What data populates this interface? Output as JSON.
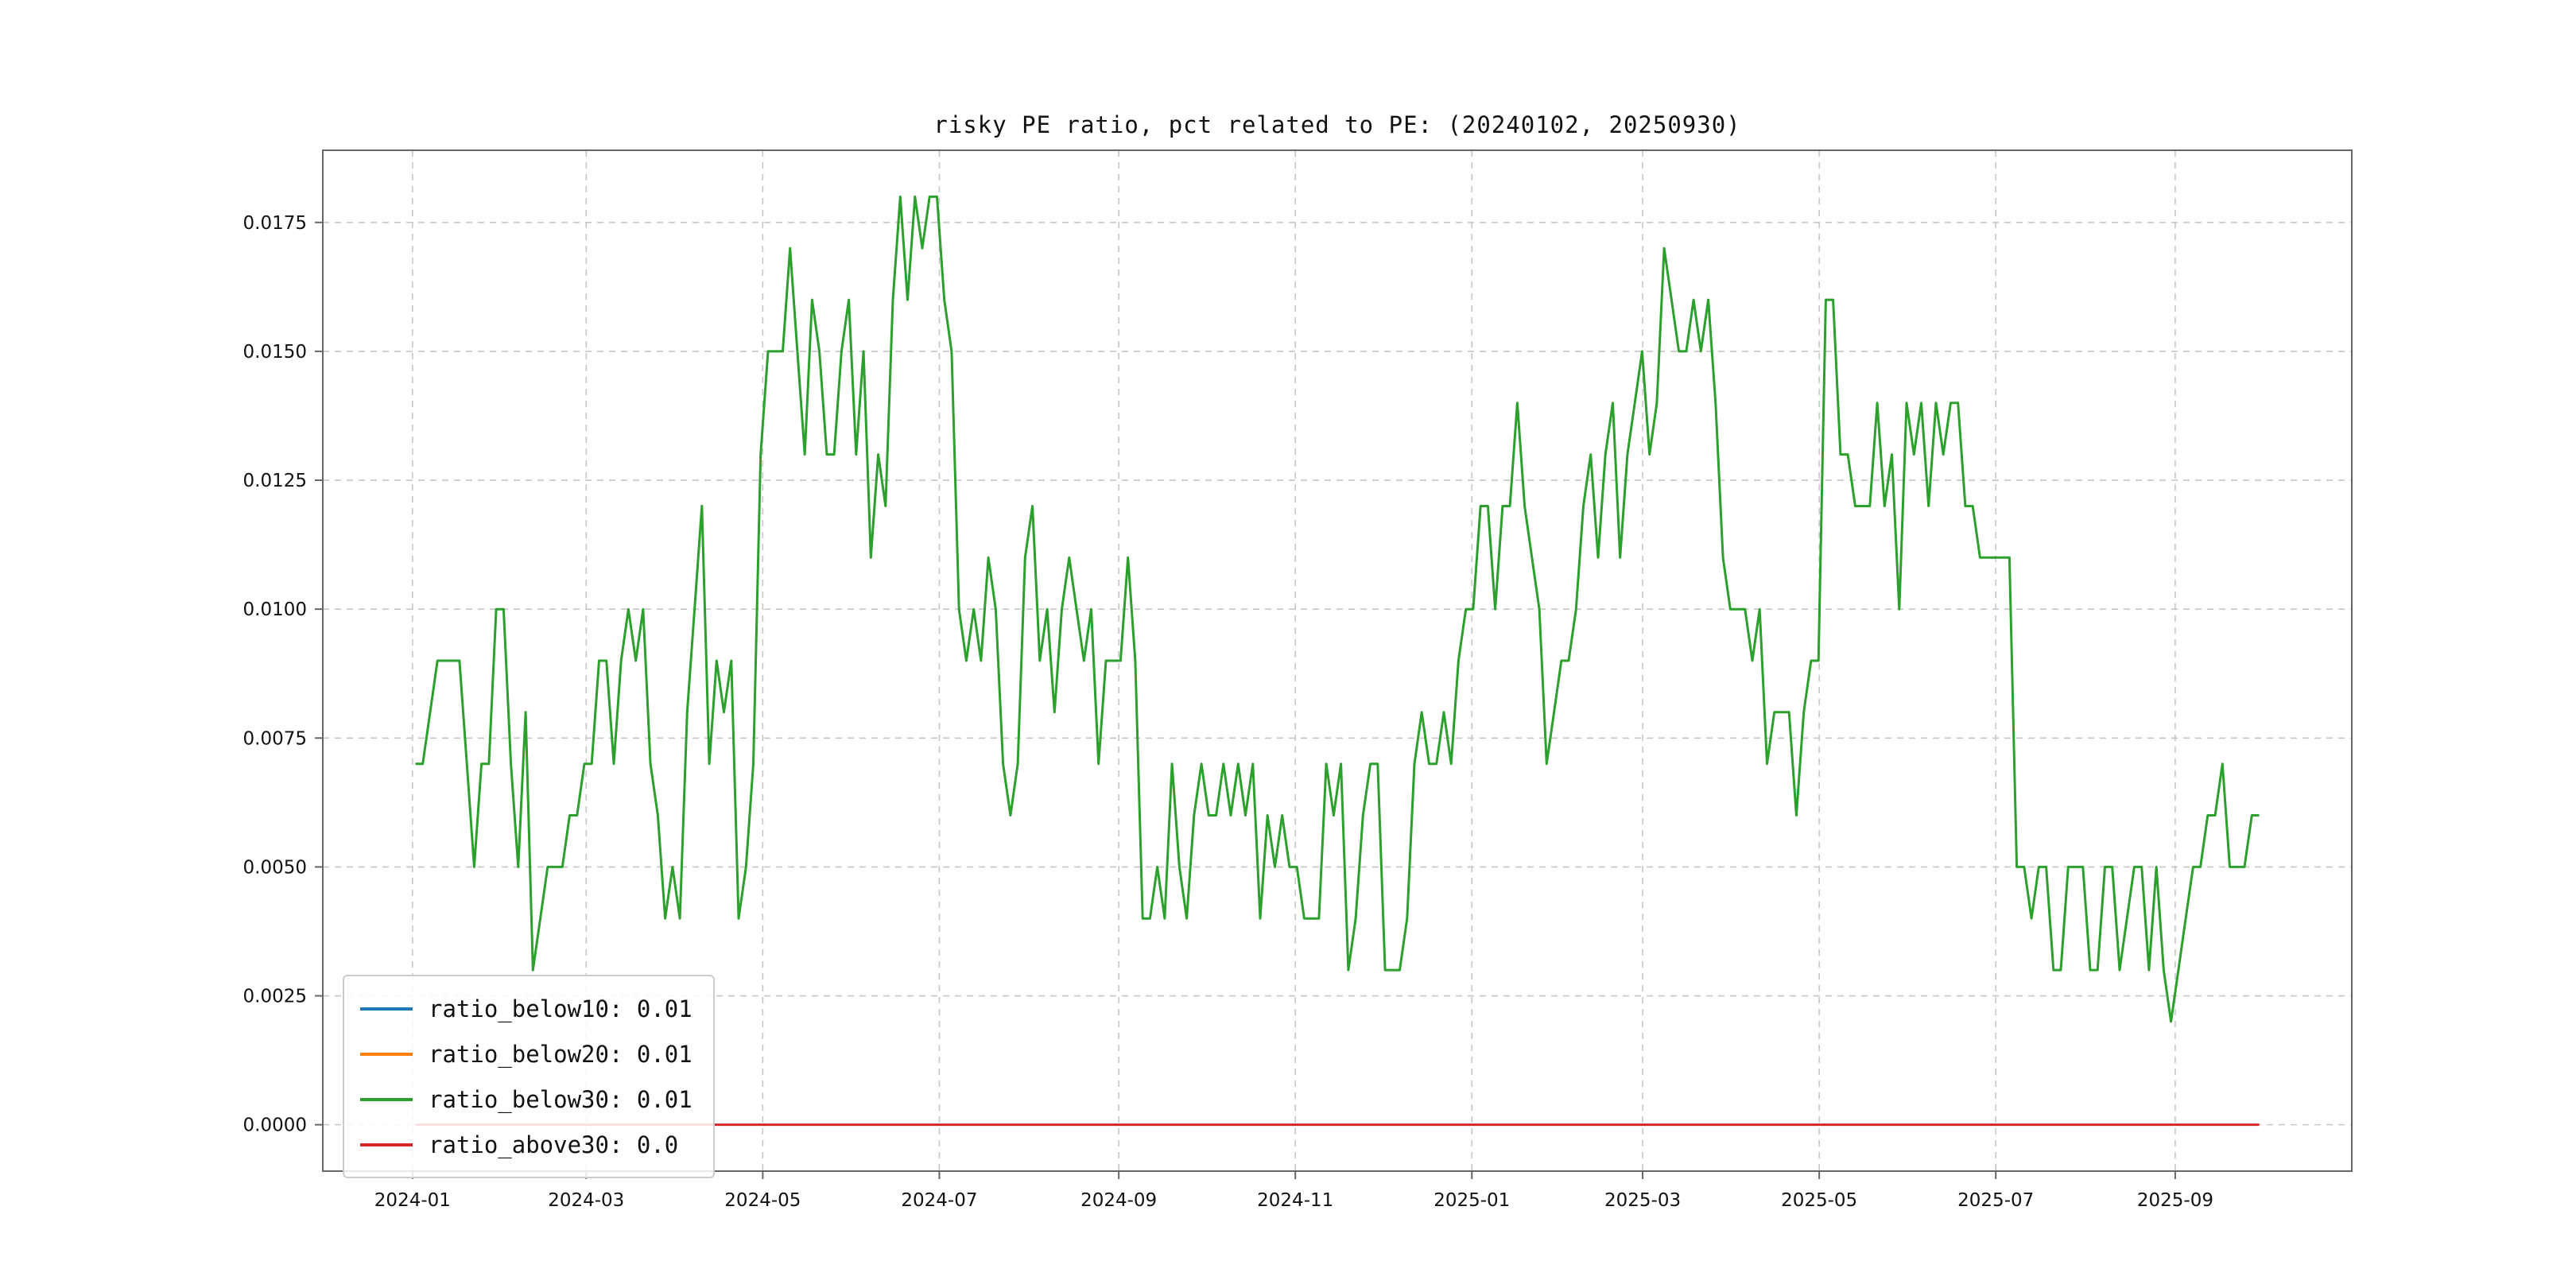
{
  "page": {
    "background": "#ffffff"
  },
  "chart_data": {
    "type": "line",
    "title": "risky PE ratio, pct related to PE: (20240102, 20250930)",
    "grid": true,
    "grid_color": "#c6c6c6",
    "spine_color": "#666666",
    "x_tick_labels": [
      "2024-01",
      "2024-03",
      "2024-05",
      "2024-07",
      "2024-09",
      "2024-11",
      "2025-01",
      "2025-03",
      "2025-05",
      "2025-07",
      "2025-09"
    ],
    "x_tick_days": [
      0,
      60,
      121,
      182,
      244,
      305,
      366,
      425,
      486,
      547,
      609
    ],
    "x_range_days": [
      -31,
      670
    ],
    "data_start_day": 1,
    "data_end_day": 638,
    "date_range": [
      "2024-01-02",
      "2025-09-30"
    ],
    "y_tick_labels": [
      "0.0000",
      "0.0025",
      "0.0050",
      "0.0075",
      "0.0100",
      "0.0125",
      "0.0150",
      "0.0175"
    ],
    "y_ticks": [
      0.0,
      0.0025,
      0.005,
      0.0075,
      0.01,
      0.0125,
      0.015,
      0.0175
    ],
    "ylim": [
      -0.0009,
      0.0189
    ],
    "legend": {
      "position": "lower left",
      "entries": [
        {
          "label": "ratio_below10: 0.01",
          "color": "#1f77b4"
        },
        {
          "label": "ratio_below20: 0.01",
          "color": "#ff7f0e"
        },
        {
          "label": "ratio_below30: 0.01",
          "color": "#2ca02c"
        },
        {
          "label": "ratio_above30: 0.0",
          "color": "#d62728"
        }
      ]
    },
    "series": [
      {
        "name": "ratio_below30",
        "color": "#2ca02c",
        "values": [
          0.007,
          0.007,
          0.008,
          0.009,
          0.009,
          0.009,
          0.009,
          0.007,
          0.005,
          0.007,
          0.007,
          0.01,
          0.01,
          0.007,
          0.005,
          0.008,
          0.003,
          0.004,
          0.005,
          0.005,
          0.005,
          0.006,
          0.006,
          0.007,
          0.007,
          0.009,
          0.009,
          0.007,
          0.009,
          0.01,
          0.009,
          0.01,
          0.007,
          0.006,
          0.004,
          0.005,
          0.004,
          0.008,
          0.01,
          0.012,
          0.007,
          0.009,
          0.008,
          0.009,
          0.004,
          0.005,
          0.007,
          0.013,
          0.015,
          0.015,
          0.015,
          0.017,
          0.015,
          0.013,
          0.016,
          0.015,
          0.013,
          0.013,
          0.015,
          0.016,
          0.013,
          0.015,
          0.011,
          0.013,
          0.012,
          0.016,
          0.018,
          0.016,
          0.018,
          0.017,
          0.018,
          0.018,
          0.016,
          0.015,
          0.01,
          0.009,
          0.01,
          0.009,
          0.011,
          0.01,
          0.007,
          0.006,
          0.007,
          0.011,
          0.012,
          0.009,
          0.01,
          0.008,
          0.01,
          0.011,
          0.01,
          0.009,
          0.01,
          0.007,
          0.009,
          0.009,
          0.009,
          0.011,
          0.009,
          0.004,
          0.004,
          0.005,
          0.004,
          0.007,
          0.005,
          0.004,
          0.006,
          0.007,
          0.006,
          0.006,
          0.007,
          0.006,
          0.007,
          0.006,
          0.007,
          0.004,
          0.006,
          0.005,
          0.006,
          0.005,
          0.005,
          0.004,
          0.004,
          0.004,
          0.007,
          0.006,
          0.007,
          0.003,
          0.004,
          0.006,
          0.007,
          0.007,
          0.003,
          0.003,
          0.003,
          0.004,
          0.007,
          0.008,
          0.007,
          0.007,
          0.008,
          0.007,
          0.009,
          0.01,
          0.01,
          0.012,
          0.012,
          0.01,
          0.012,
          0.012,
          0.014,
          0.012,
          0.011,
          0.01,
          0.007,
          0.008,
          0.009,
          0.009,
          0.01,
          0.012,
          0.013,
          0.011,
          0.013,
          0.014,
          0.011,
          0.013,
          0.014,
          0.015,
          0.013,
          0.014,
          0.017,
          0.016,
          0.015,
          0.015,
          0.016,
          0.015,
          0.016,
          0.014,
          0.011,
          0.01,
          0.01,
          0.01,
          0.009,
          0.01,
          0.007,
          0.008,
          0.008,
          0.008,
          0.006,
          0.008,
          0.009,
          0.009,
          0.016,
          0.016,
          0.013,
          0.013,
          0.012,
          0.012,
          0.012,
          0.014,
          0.012,
          0.013,
          0.01,
          0.014,
          0.013,
          0.014,
          0.012,
          0.014,
          0.013,
          0.014,
          0.014,
          0.012,
          0.012,
          0.011,
          0.011,
          0.011,
          0.011,
          0.011,
          0.005,
          0.005,
          0.004,
          0.005,
          0.005,
          0.003,
          0.003,
          0.005,
          0.005,
          0.005,
          0.003,
          0.003,
          0.005,
          0.005,
          0.003,
          0.004,
          0.005,
          0.005,
          0.003,
          0.005,
          0.003,
          0.002,
          0.003,
          0.004,
          0.005,
          0.005,
          0.006,
          0.006,
          0.007,
          0.005,
          0.005,
          0.005,
          0.006,
          0.006
        ]
      },
      {
        "name": "ratio_above30",
        "color": "#d62728",
        "values": [
          0.0,
          0.0
        ]
      }
    ]
  }
}
